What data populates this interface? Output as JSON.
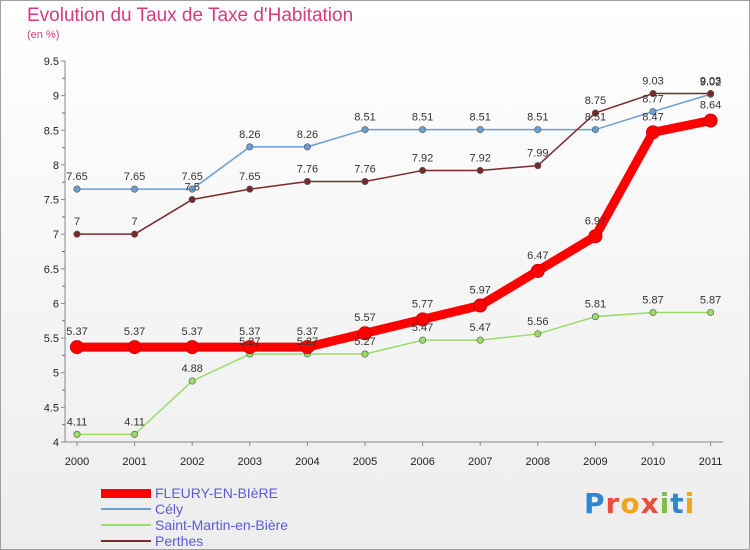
{
  "header": {
    "title": "Evolution du Taux de Taxe d'Habitation",
    "subtitle": "(en %)"
  },
  "logo": {
    "text": "Proxiti"
  },
  "chart_data": {
    "type": "line",
    "title": "Evolution du Taux de Taxe d'Habitation",
    "ylabel": "(en %)",
    "xlabel": "",
    "x": [
      "2000",
      "2001",
      "2002",
      "2003",
      "2004",
      "2005",
      "2006",
      "2007",
      "2008",
      "2009",
      "2010",
      "2011"
    ],
    "ylim": [
      4,
      9.5
    ],
    "yticks": [
      "4",
      "4.5",
      "5",
      "5.5",
      "6",
      "6.5",
      "7",
      "7.5",
      "8",
      "8.5",
      "9",
      "9.5"
    ],
    "grid": false,
    "legend_position": "bottom-left",
    "series": [
      {
        "name": "FLEURY-EN-BIèRE",
        "color": "#ff0000",
        "values": [
          5.37,
          5.37,
          5.37,
          5.37,
          5.37,
          5.57,
          5.77,
          5.97,
          6.47,
          6.97,
          8.47,
          8.64
        ],
        "labels": [
          "5.37",
          "5.37",
          "5.37",
          "5.37",
          "5.37",
          "5.57",
          "5.77",
          "5.97",
          "6.47",
          "6.97",
          "8.47",
          "8.64"
        ]
      },
      {
        "name": "Cély",
        "color": "#6a9fd4",
        "values": [
          7.65,
          7.65,
          7.65,
          8.26,
          8.26,
          8.51,
          8.51,
          8.51,
          8.51,
          8.51,
          8.77,
          9.02
        ],
        "labels": [
          "7.65",
          "7.65",
          "7.65",
          "8.26",
          "8.26",
          "8.51",
          "8.51",
          "8.51",
          "8.51",
          "8.51",
          "8.77",
          "9.02"
        ]
      },
      {
        "name": "Saint-Martin-en-Bière",
        "color": "#99dd66",
        "values": [
          4.11,
          4.11,
          4.88,
          5.27,
          5.27,
          5.27,
          5.47,
          5.47,
          5.56,
          5.81,
          5.87,
          5.87
        ],
        "labels": [
          "4.11",
          "4.11",
          "4.88",
          "5.27",
          "5.27",
          "5.27",
          "5.47",
          "5.47",
          "5.56",
          "5.81",
          "5.87",
          "5.87"
        ]
      },
      {
        "name": "Perthes",
        "color": "#7a2a2a",
        "values": [
          7,
          7,
          7.5,
          7.65,
          7.76,
          7.76,
          7.92,
          7.92,
          7.99,
          8.75,
          9.03,
          9.03
        ],
        "labels": [
          "7",
          "7",
          "7.5",
          "7.65",
          "7.76",
          "7.76",
          "7.92",
          "7.92",
          "7.99",
          "8.75",
          "9.03",
          "9.03"
        ]
      }
    ]
  }
}
